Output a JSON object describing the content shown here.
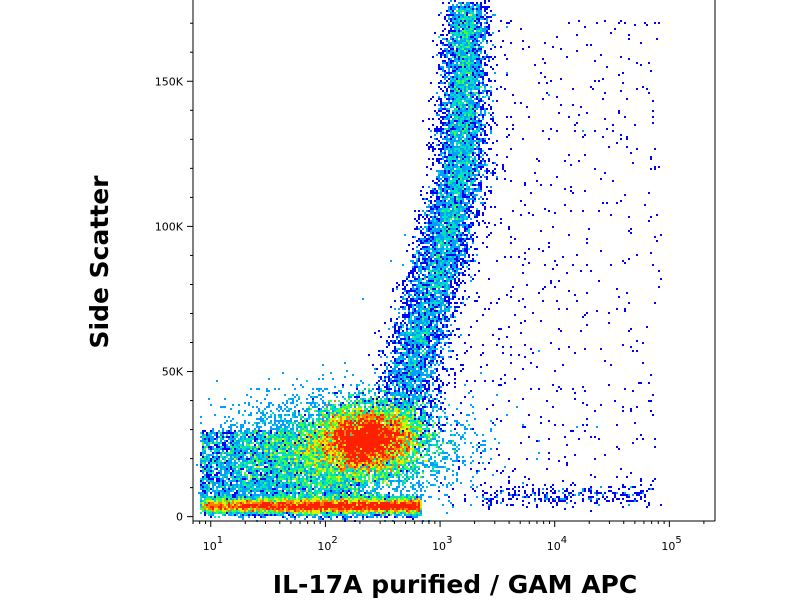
{
  "chart_data": {
    "type": "scatter",
    "subtype": "flow-cytometry density dot plot",
    "xlabel": "IL-17A purified / GAM APC",
    "ylabel": "Side Scatter",
    "x_scale": "log",
    "x_ticks": [
      {
        "value": 10,
        "base": "10",
        "exp": "1"
      },
      {
        "value": 100,
        "base": "10",
        "exp": "2"
      },
      {
        "value": 1000,
        "base": "10",
        "exp": "3"
      },
      {
        "value": 10000,
        "base": "10",
        "exp": "4"
      },
      {
        "value": 100000,
        "base": "10",
        "exp": "5"
      }
    ],
    "y_ticks": [
      {
        "value": 0,
        "label": "0"
      },
      {
        "value": 50000,
        "label": "50K"
      },
      {
        "value": 100000,
        "label": "100K"
      },
      {
        "value": 150000,
        "label": "150K"
      }
    ],
    "xlim": [
      7,
      250000
    ],
    "ylim": [
      -1500,
      178000
    ],
    "grid": false,
    "legend": "none",
    "color_scale": [
      "#0000ff",
      "#00a0ff",
      "#00e0c0",
      "#40ff40",
      "#e0f000",
      "#ff8000",
      "#ff2000"
    ],
    "populations": [
      {
        "name": "main cluster",
        "center_x": 280,
        "center_y": 27000,
        "density": "high"
      },
      {
        "name": "low-SSC band",
        "center_x": 90,
        "center_y": 5000,
        "density": "high"
      },
      {
        "name": "high-SSC arm",
        "center_x": 1700,
        "center_y": 120000,
        "density": "medium"
      }
    ]
  }
}
